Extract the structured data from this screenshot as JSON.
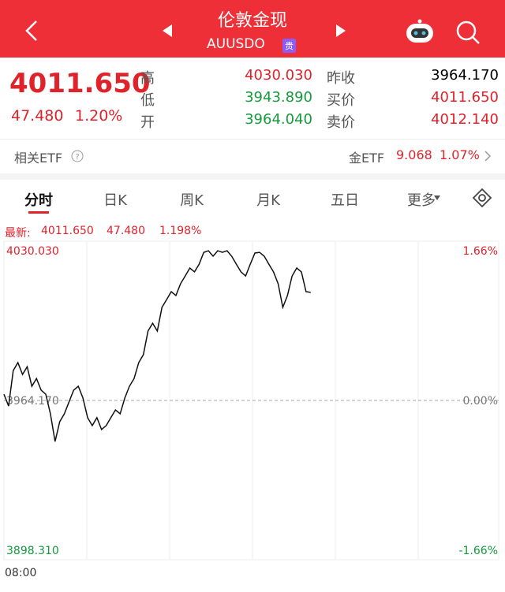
{
  "header": {
    "title": "伦敦金现",
    "subtitle": "AUUSDO",
    "badge": "贵"
  },
  "quote": {
    "price": "4011.650",
    "change": "47.480",
    "percent": "1.20%",
    "stats": [
      {
        "label": "高",
        "value": "4030.030"
      },
      {
        "label": "低",
        "value": "3943.890"
      },
      {
        "label": "开",
        "value": "3964.040"
      }
    ],
    "refs": [
      {
        "label": "昨收",
        "value": "3964.170"
      },
      {
        "label": "买价",
        "value": "4011.650"
      },
      {
        "label": "卖价",
        "value": "4012.140"
      }
    ]
  },
  "etf": {
    "label": "相关ETF",
    "name": "金ETF",
    "price": "9.068",
    "percent": "1.07%"
  },
  "tabs": [
    "分时",
    "日K",
    "周K",
    "月K",
    "五日",
    "更多"
  ],
  "latest": {
    "label": "最新:",
    "price": "4011.650",
    "change": "47.480",
    "percent": "1.198%"
  },
  "chart_data": {
    "type": "line",
    "color": "#111111",
    "values": [
      3966.9,
      3961.7,
      3977.3,
      3980.8,
      3975.6,
      3979.0,
      3970.4,
      3973.8,
      3968.7,
      3966.9,
      3958.3,
      3946.1,
      3954.8,
      3958.3,
      3963.5,
      3968.7,
      3970.4,
      3965.2,
      3956.6,
      3953.1,
      3956.6,
      3951.4,
      3953.1,
      3956.6,
      3960.0,
      3958.3,
      3965.2,
      3970.4,
      3973.8,
      3980.8,
      3984.3,
      3994.7,
      3998.1,
      3994.7,
      4005.1,
      4008.5,
      4012.0,
      4010.3,
      4015.5,
      4018.9,
      4022.4,
      4020.7,
      4024.1,
      4029.3,
      4030.0,
      4027.6,
      4030.0,
      4029.3,
      4030.0,
      4027.6,
      4024.1,
      4020.7,
      4018.9,
      4024.1,
      4029.0,
      4029.3,
      4027.6,
      4024.1,
      4020.7,
      4015.5,
      4005.1,
      4010.3,
      4018.9,
      4022.4,
      4020.7,
      4012.0,
      4011.7
    ],
    "ylim": [
      3898.31,
      4030.03
    ],
    "yticks": [
      {
        "value": 4030.03,
        "label": "4030.030"
      },
      {
        "value": 3964.17,
        "label": "3964.170"
      },
      {
        "value": 3898.31,
        "label": "3898.310"
      }
    ],
    "y2lim": [
      -1.66,
      1.66
    ],
    "y2ticks": [
      {
        "value": 1.66,
        "label": "1.66%"
      },
      {
        "value": 0,
        "label": "0.00%"
      },
      {
        "value": -1.66,
        "label": "-1.66%"
      }
    ],
    "x_start_label": "08:00"
  }
}
